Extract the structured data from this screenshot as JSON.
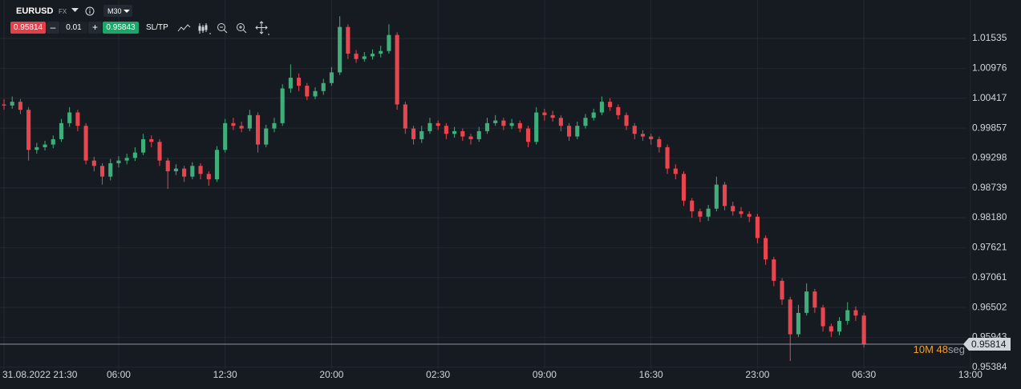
{
  "toolbar": {
    "symbol": "EURUSD",
    "market": "FX",
    "timeframe": "M30",
    "bid": "0.95814",
    "lot": "0.01",
    "ask": "0.95843",
    "sltp": "SL/TP"
  },
  "chart_data": {
    "type": "candlestick",
    "open": [
      1.003,
      1.0028,
      1.0035,
      1.002,
      0.9945,
      0.995,
      0.9955,
      0.9965,
      0.9995,
      1.0015,
      0.999,
      0.9925,
      0.9915,
      0.9895,
      0.992,
      0.9925,
      0.993,
      0.994,
      0.9965,
      0.996,
      0.9925,
      0.9905,
      0.991,
      0.9895,
      0.9915,
      0.99,
      0.989,
      0.9945,
      0.9995,
      0.999,
      0.9985,
      1.001,
      0.9955,
      0.9985,
      0.9995,
      1.006,
      1.008,
      1.0065,
      1.0045,
      1.0055,
      1.007,
      1.009,
      1.0175,
      1.0125,
      1.0115,
      1.012,
      1.0125,
      1.013,
      1.016,
      1.003,
      0.9985,
      0.9965,
      0.998,
      0.9995,
      0.999,
      0.9975,
      0.998,
      0.997,
      0.9965,
      0.998,
      0.9995,
      1.0,
      0.999,
      0.9995,
      0.9985,
      0.996,
      1.0015,
      1.001,
      1.0005,
      0.999,
      0.997,
      0.999,
      1.0005,
      1.0015,
      1.0035,
      1.0025,
      1.001,
      0.999,
      0.9975,
      0.997,
      0.9965,
      0.995,
      0.991,
      0.99,
      0.985,
      0.983,
      0.982,
      0.9835,
      0.988,
      0.984,
      0.983,
      0.9825,
      0.982,
      0.978,
      0.974,
      0.97,
      0.9665,
      0.96,
      0.964,
      0.968,
      0.965,
      0.9615,
      0.9605,
      0.9625,
      0.9645,
      0.9635
    ],
    "high": [
      1.004,
      1.0045,
      1.004,
      1.0025,
      0.9958,
      0.9962,
      0.9972,
      1.0003,
      1.0025,
      1.002,
      0.9995,
      0.9932,
      0.992,
      0.9928,
      0.9933,
      0.9938,
      0.995,
      0.9975,
      0.9972,
      0.9965,
      0.993,
      0.9918,
      0.9915,
      0.9922,
      0.992,
      0.9905,
      0.9952,
      1.0003,
      1.0005,
      0.9998,
      1.002,
      1.0015,
      0.9992,
      1.0005,
      1.0068,
      1.0105,
      1.0088,
      1.007,
      1.0062,
      1.0078,
      1.01,
      1.0195,
      1.018,
      1.0132,
      1.0128,
      1.0133,
      1.014,
      1.018,
      1.0165,
      1.0035,
      0.999,
      0.999,
      1.0005,
      1.0,
      0.9995,
      0.9988,
      0.9985,
      0.9975,
      0.9988,
      1.0005,
      1.001,
      1.0005,
      1.0003,
      1.0,
      0.999,
      1.0025,
      1.0022,
      1.0018,
      1.001,
      0.9995,
      0.9998,
      1.0012,
      1.0022,
      1.0045,
      1.0042,
      1.003,
      1.0015,
      0.9995,
      0.9982,
      0.9975,
      0.997,
      0.9955,
      0.9918,
      0.9905,
      0.9855,
      0.9835,
      0.9842,
      0.9895,
      0.9885,
      0.9848,
      0.9838,
      0.983,
      0.9825,
      0.9785,
      0.9745,
      0.9705,
      0.967,
      0.9655,
      0.9695,
      0.9685,
      0.9655,
      0.962,
      0.9632,
      0.966,
      0.9652,
      0.964
    ],
    "low": [
      1.002,
      1.0022,
      1.0012,
      0.9925,
      0.9938,
      0.9944,
      0.9948,
      0.996,
      0.9988,
      0.998,
      0.9918,
      0.9905,
      0.988,
      0.9888,
      0.9912,
      0.9918,
      0.9924,
      0.9935,
      0.995,
      0.9915,
      0.9872,
      0.9898,
      0.9885,
      0.989,
      0.989,
      0.9878,
      0.9885,
      0.994,
      0.9982,
      0.9978,
      0.998,
      0.994,
      0.995,
      0.9978,
      0.999,
      1.0052,
      1.0055,
      1.0038,
      1.004,
      1.0048,
      1.0065,
      1.0085,
      1.0115,
      1.0108,
      1.011,
      1.0114,
      1.0118,
      1.0125,
      1.002,
      0.9975,
      0.9955,
      0.9958,
      0.9975,
      0.9982,
      0.9965,
      0.9968,
      0.9962,
      0.9955,
      0.996,
      0.9975,
      0.999,
      0.9982,
      0.9984,
      0.9978,
      0.995,
      0.9955,
      1.0,
      0.9998,
      0.998,
      0.9962,
      0.9965,
      0.9985,
      1.0,
      1.001,
      1.0018,
      1.0002,
      0.9982,
      0.9965,
      0.9962,
      0.9955,
      0.994,
      0.99,
      0.989,
      0.984,
      0.9818,
      0.981,
      0.9812,
      0.983,
      0.9832,
      0.9822,
      0.9818,
      0.981,
      0.977,
      0.973,
      0.969,
      0.9655,
      0.955,
      0.9595,
      0.9635,
      0.964,
      0.9605,
      0.9595,
      0.9598,
      0.9618,
      0.9625,
      0.9575
    ],
    "close": [
      1.0028,
      1.0035,
      1.002,
      0.9945,
      0.995,
      0.9955,
      0.9965,
      0.9995,
      1.0015,
      0.999,
      0.9925,
      0.9915,
      0.9895,
      0.992,
      0.9925,
      0.993,
      0.994,
      0.9965,
      0.996,
      0.9925,
      0.9905,
      0.991,
      0.9895,
      0.9915,
      0.99,
      0.989,
      0.9945,
      0.9995,
      0.999,
      0.9985,
      1.001,
      0.9955,
      0.9985,
      0.9995,
      1.006,
      1.008,
      1.0065,
      1.0045,
      1.0055,
      1.007,
      1.009,
      1.0175,
      1.0125,
      1.0115,
      1.012,
      1.0125,
      1.013,
      1.016,
      1.003,
      0.9985,
      0.9965,
      0.998,
      0.9995,
      0.999,
      0.9975,
      0.998,
      0.997,
      0.9965,
      0.998,
      0.9995,
      1.0,
      0.999,
      0.9995,
      0.9985,
      0.996,
      1.0015,
      1.001,
      1.0005,
      0.999,
      0.997,
      0.999,
      1.0005,
      1.0015,
      1.0035,
      1.0025,
      1.001,
      0.999,
      0.9975,
      0.997,
      0.9965,
      0.995,
      0.991,
      0.99,
      0.985,
      0.983,
      0.982,
      0.9835,
      0.988,
      0.984,
      0.983,
      0.9825,
      0.982,
      0.978,
      0.974,
      0.97,
      0.9665,
      0.96,
      0.964,
      0.968,
      0.965,
      0.9615,
      0.9605,
      0.9625,
      0.9645,
      0.9635,
      0.95814
    ],
    "up_color": "#3fae7a",
    "down_color": "#e8454f",
    "xlim": [
      0,
      118.5
    ],
    "xticks": [
      {
        "value": 0,
        "label": "31.08.2022 21:30"
      },
      {
        "value": 14,
        "label": "06:00"
      },
      {
        "value": 27,
        "label": "12:30"
      },
      {
        "value": 40,
        "label": "20:00"
      },
      {
        "value": 53,
        "label": "02:30"
      },
      {
        "value": 66,
        "label": "09:00"
      },
      {
        "value": 79,
        "label": "16:30"
      },
      {
        "value": 92,
        "label": "23:00"
      },
      {
        "value": 105,
        "label": "06:30"
      },
      {
        "value": 118,
        "label": "13:00"
      }
    ],
    "ylim": [
      0.9535,
      1.0203
    ],
    "yticks": [
      1.01535,
      1.00976,
      1.00417,
      0.99857,
      0.99298,
      0.98739,
      {
        "value": 0.9818,
        "label": "0.98180"
      },
      0.97621,
      0.97061,
      0.96502,
      0.95943,
      0.95384
    ],
    "grid": true,
    "countdown_value": "10M 48",
    "countdown_unit": "seg"
  }
}
